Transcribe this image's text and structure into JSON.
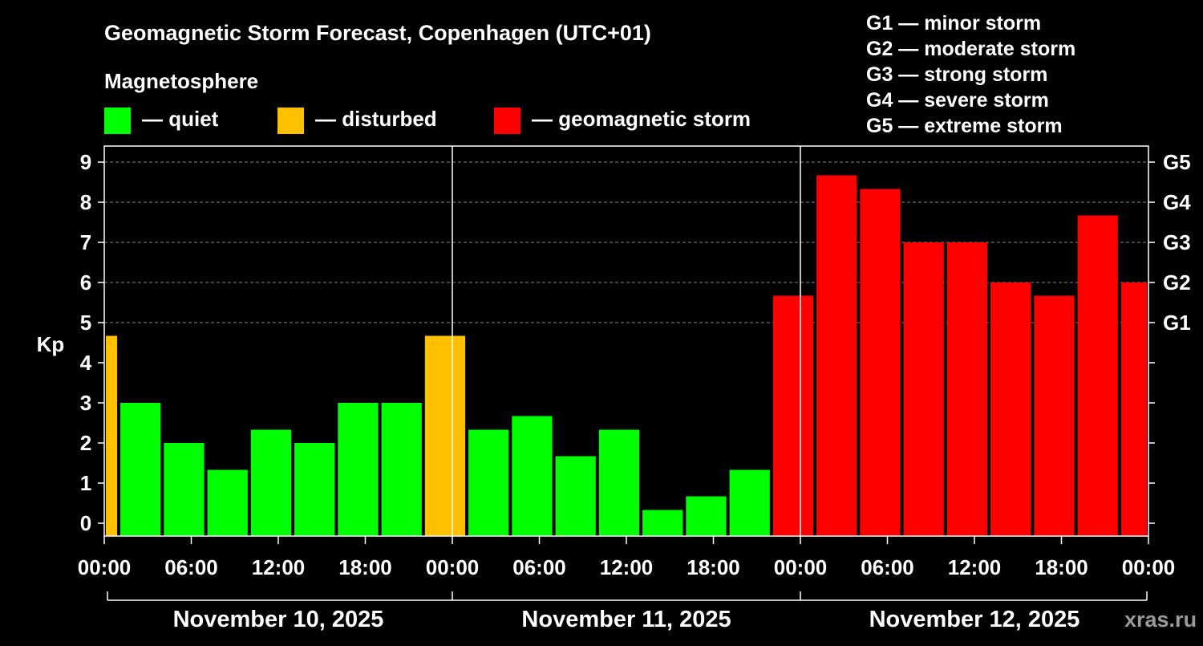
{
  "title": "Geomagnetic Storm Forecast, Copenhagen (UTC+01)",
  "subtitle": "Magnetosphere",
  "legend": [
    {
      "label": "— quiet",
      "color": "#00ff00"
    },
    {
      "label": "— disturbed",
      "color": "#ffc000"
    },
    {
      "label": "— geomagnetic storm",
      "color": "#ff0000"
    }
  ],
  "storm_scale": [
    "G1 — minor storm",
    "G2 — moderate storm",
    "G3 — strong storm",
    "G4 — severe storm",
    "G5 — extreme storm"
  ],
  "watermark": "xras.ru",
  "chart_data": {
    "type": "bar",
    "title": "Geomagnetic Storm Forecast, Copenhagen (UTC+01)",
    "ylabel": "Kp",
    "ylim": [
      0,
      9
    ],
    "yticks": [
      "0",
      "1",
      "2",
      "3",
      "4",
      "5",
      "6",
      "7",
      "8",
      "9"
    ],
    "right_ticks": [
      {
        "kp": 5,
        "label": "G1"
      },
      {
        "kp": 6,
        "label": "G2"
      },
      {
        "kp": 7,
        "label": "G3"
      },
      {
        "kp": 8,
        "label": "G4"
      },
      {
        "kp": 9,
        "label": "G5"
      }
    ],
    "x_range_hours": [
      0,
      72
    ],
    "xticks": [
      {
        "h": 0,
        "label": "00:00"
      },
      {
        "h": 6,
        "label": "06:00"
      },
      {
        "h": 12,
        "label": "12:00"
      },
      {
        "h": 18,
        "label": "18:00"
      },
      {
        "h": 24,
        "label": "00:00"
      },
      {
        "h": 30,
        "label": "06:00"
      },
      {
        "h": 36,
        "label": "12:00"
      },
      {
        "h": 42,
        "label": "18:00"
      },
      {
        "h": 48,
        "label": "00:00"
      },
      {
        "h": 54,
        "label": "06:00"
      },
      {
        "h": 60,
        "label": "12:00"
      },
      {
        "h": 66,
        "label": "18:00"
      },
      {
        "h": 72,
        "label": "00:00"
      }
    ],
    "days": [
      "November 10, 2025",
      "November 11, 2025",
      "November 12, 2025"
    ],
    "day_separators_h": [
      24,
      48
    ],
    "bars": [
      {
        "start_h": 0,
        "end_h": 1,
        "kp": 4.67,
        "status": "disturbed"
      },
      {
        "start_h": 1,
        "end_h": 4,
        "kp": 3.0,
        "status": "quiet"
      },
      {
        "start_h": 4,
        "end_h": 7,
        "kp": 2.0,
        "status": "quiet"
      },
      {
        "start_h": 7,
        "end_h": 10,
        "kp": 1.33,
        "status": "quiet"
      },
      {
        "start_h": 10,
        "end_h": 13,
        "kp": 2.33,
        "status": "quiet"
      },
      {
        "start_h": 13,
        "end_h": 16,
        "kp": 2.0,
        "status": "quiet"
      },
      {
        "start_h": 16,
        "end_h": 19,
        "kp": 3.0,
        "status": "quiet"
      },
      {
        "start_h": 19,
        "end_h": 22,
        "kp": 3.0,
        "status": "quiet"
      },
      {
        "start_h": 22,
        "end_h": 25,
        "kp": 4.67,
        "status": "disturbed"
      },
      {
        "start_h": 25,
        "end_h": 28,
        "kp": 2.33,
        "status": "quiet"
      },
      {
        "start_h": 28,
        "end_h": 31,
        "kp": 2.67,
        "status": "quiet"
      },
      {
        "start_h": 31,
        "end_h": 34,
        "kp": 1.67,
        "status": "quiet"
      },
      {
        "start_h": 34,
        "end_h": 37,
        "kp": 2.33,
        "status": "quiet"
      },
      {
        "start_h": 37,
        "end_h": 40,
        "kp": 0.33,
        "status": "quiet"
      },
      {
        "start_h": 40,
        "end_h": 43,
        "kp": 0.67,
        "status": "quiet"
      },
      {
        "start_h": 43,
        "end_h": 46,
        "kp": 1.33,
        "status": "quiet"
      },
      {
        "start_h": 46,
        "end_h": 49,
        "kp": 5.67,
        "status": "storm"
      },
      {
        "start_h": 49,
        "end_h": 52,
        "kp": 8.67,
        "status": "storm"
      },
      {
        "start_h": 52,
        "end_h": 55,
        "kp": 8.33,
        "status": "storm"
      },
      {
        "start_h": 55,
        "end_h": 58,
        "kp": 7.0,
        "status": "storm"
      },
      {
        "start_h": 58,
        "end_h": 61,
        "kp": 7.0,
        "status": "storm"
      },
      {
        "start_h": 61,
        "end_h": 64,
        "kp": 6.0,
        "status": "storm"
      },
      {
        "start_h": 64,
        "end_h": 67,
        "kp": 5.67,
        "status": "storm"
      },
      {
        "start_h": 67,
        "end_h": 70,
        "kp": 7.67,
        "status": "storm"
      },
      {
        "start_h": 70,
        "end_h": 72,
        "kp": 6.0,
        "status": "storm"
      }
    ],
    "status_colors": {
      "quiet": "#00ff00",
      "disturbed": "#ffc000",
      "storm": "#ff0000"
    }
  }
}
